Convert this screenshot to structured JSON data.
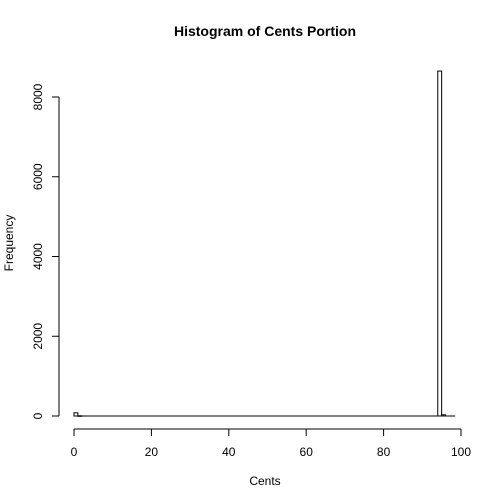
{
  "chart_data": {
    "type": "bar",
    "title": "Histogram of Cents Portion",
    "xlabel": "Cents",
    "ylabel": "Frequency",
    "xlim": [
      0,
      100
    ],
    "ylim": [
      0,
      8650
    ],
    "x_ticks": [
      "0",
      "20",
      "40",
      "60",
      "80",
      "100"
    ],
    "y_ticks": [
      "0",
      "2000",
      "4000",
      "6000",
      "8000"
    ],
    "bin_width": 1,
    "bins": [
      {
        "x0": 0,
        "x1": 1,
        "value": 80
      },
      {
        "x0": 1,
        "x2": 2,
        "x1": 2,
        "value": 5
      },
      {
        "x0": 94,
        "x1": 95,
        "value": 8650
      },
      {
        "x0": 95,
        "x1": 96,
        "value": 30
      }
    ],
    "grid": false,
    "legend": "none"
  }
}
